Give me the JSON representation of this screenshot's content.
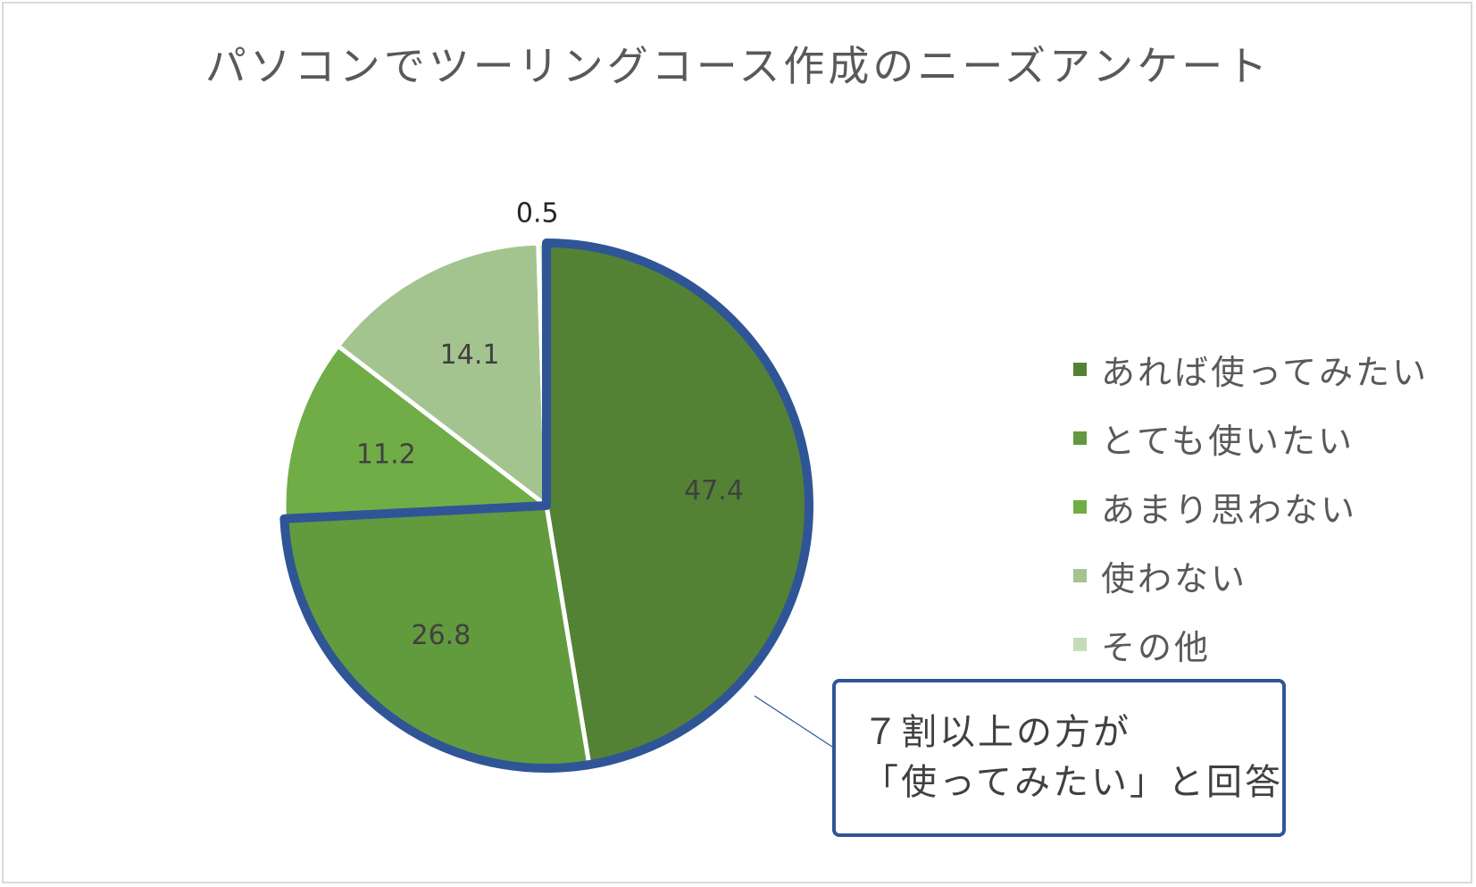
{
  "chart_data": {
    "type": "pie",
    "title": "パソコンでツーリングコース作成のニーズアンケート",
    "categories": [
      "あれば使ってみたい",
      "とても使いたい",
      "あまり思わない",
      "使わない",
      "その他"
    ],
    "values": [
      47.4,
      26.8,
      11.2,
      14.1,
      0.5
    ],
    "data_labels": [
      "47.4",
      "26.8",
      "11.2",
      "14.1",
      "0.5"
    ],
    "colors": [
      "#548235",
      "#629a3e",
      "#70ad47",
      "#a3c48f",
      "#c5dcb8"
    ],
    "legend_position": "right",
    "highlight": {
      "slices": [
        "あれば使ってみたい",
        "とても使いたい"
      ],
      "outline_color": "#2f5597"
    }
  },
  "callout": {
    "line1": "７割以上の方が",
    "line2": "「使ってみたい」と回答"
  }
}
